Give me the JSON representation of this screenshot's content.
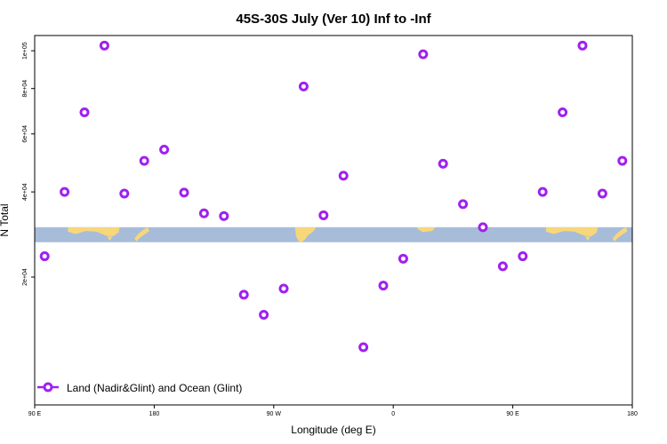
{
  "chart_data": {
    "type": "scatter",
    "title": "45S-30S July (Ver 10)   Inf to -Inf",
    "xlabel": "Longitude (deg E)",
    "ylabel": "N Total",
    "xlim": [
      90,
      540
    ],
    "ylim": [
      5000,
      109000
    ],
    "x_ticks": [
      {
        "value": 90,
        "label": "90 E"
      },
      {
        "value": 180,
        "label": "180"
      },
      {
        "value": 270,
        "label": "90 W"
      },
      {
        "value": 360,
        "label": "0"
      },
      {
        "value": 450,
        "label": "90 E"
      },
      {
        "value": 540,
        "label": "180"
      }
    ],
    "y_ticks": [
      {
        "value": 20000,
        "label": "2e+04"
      },
      {
        "value": 40000,
        "label": "4e+04"
      },
      {
        "value": 60000,
        "label": "6e+04"
      },
      {
        "value": 80000,
        "label": "8e+04"
      },
      {
        "value": 100000,
        "label": "1e+05"
      }
    ],
    "grid": false,
    "legend": {
      "position": "bottom-left"
    },
    "map_band": {
      "y_range": [
        27000,
        30500
      ],
      "ocean_color": "#a7bcd9",
      "land_color": "#f8d77a"
    },
    "series": [
      {
        "name": "Land (Nadir&Glint) and Ocean (Glint)",
        "color": "#a020f0",
        "x": [
          97.5,
          112.5,
          127.5,
          142.5,
          157.5,
          172.5,
          187.5,
          202.5,
          217.5,
          232.5,
          247.5,
          262.5,
          277.5,
          292.5,
          307.5,
          322.5,
          337.5,
          352.5,
          367.5,
          382.5,
          397.5,
          412.5,
          427.5,
          442.5,
          457.5,
          472.5,
          487.5,
          502.5,
          517.5,
          532.5
        ],
        "y": [
          24000,
          40000,
          69000,
          103000,
          39500,
          50000,
          54000,
          39800,
          34000,
          33300,
          17000,
          14000,
          18000,
          81000,
          33500,
          45000,
          10000,
          18500,
          23500,
          98000,
          49000,
          36500,
          30500,
          22000,
          24000,
          40000,
          69000,
          103000,
          39500,
          50000
        ]
      }
    ]
  }
}
